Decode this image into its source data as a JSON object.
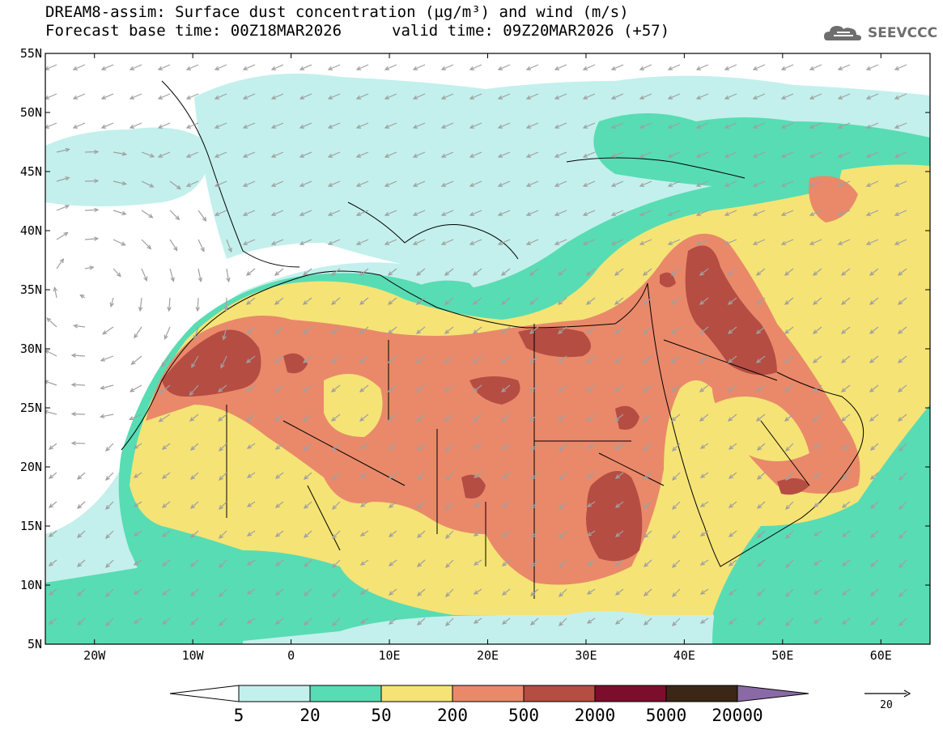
{
  "title": {
    "line1": "DREAM8-assim: Surface dust concentration (µg/m³) and wind (m/s)",
    "base_time": "Forecast base time: 00Z18MAR2026",
    "valid_time": "valid time: 09Z20MAR2026 (+57)"
  },
  "logo": {
    "text": "SEEVCCC",
    "icon": "cloud-logo-icon"
  },
  "map": {
    "projection": "lat-lon",
    "lon_range": [
      -25,
      65
    ],
    "lat_range": [
      5,
      55
    ],
    "lat_ticks": [
      "5N",
      "10N",
      "15N",
      "20N",
      "25N",
      "30N",
      "35N",
      "40N",
      "45N",
      "50N",
      "55N"
    ],
    "lon_ticks": [
      "20W",
      "10W",
      "0",
      "10E",
      "20E",
      "30E",
      "40E",
      "50E",
      "60E"
    ],
    "wind_arrow_color": "#a0a0a0",
    "boundary_color": "#000000"
  },
  "colorbar": {
    "labels": [
      "5",
      "20",
      "50",
      "200",
      "500",
      "2000",
      "5000",
      "20000"
    ],
    "colors": [
      "#c3f0ec",
      "#58dcb3",
      "#f5e376",
      "#e9896a",
      "#b54d43",
      "#7c0e2b",
      "#3c2616",
      "#8a6aa6"
    ]
  },
  "wind_reference": {
    "label": "20",
    "unit": "m/s"
  }
}
